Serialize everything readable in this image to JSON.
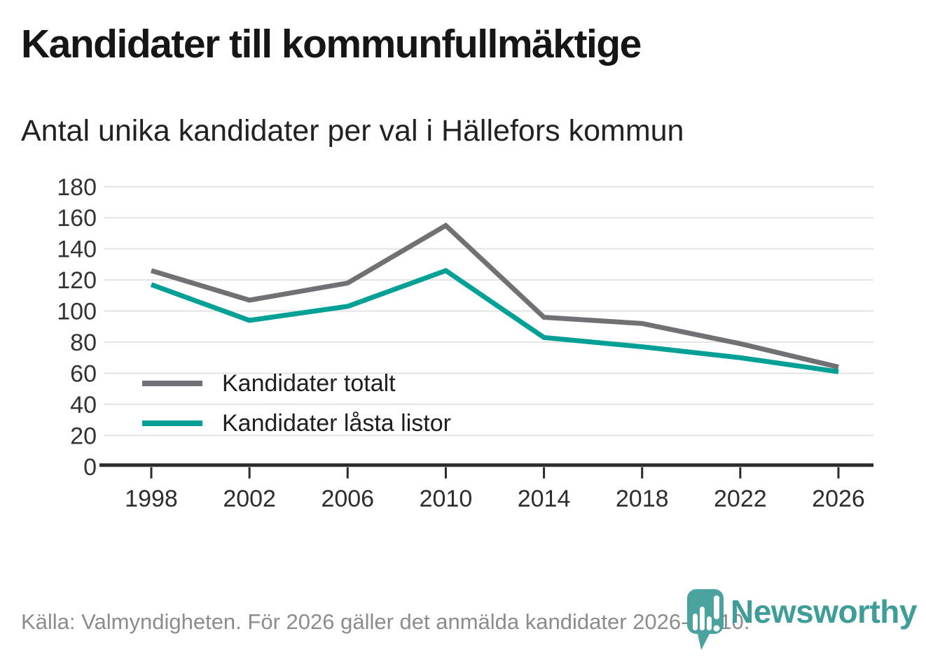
{
  "header": {
    "title": "Kandidater till kommunfullmäktige",
    "subtitle": "Antal unika kandidater per val i Hällefors kommun"
  },
  "chart_data": {
    "type": "line",
    "title": "Kandidater till kommunfullmäktige",
    "subtitle": "Antal unika kandidater per val i Hällefors kommun",
    "categories": [
      1998,
      2002,
      2006,
      2010,
      2014,
      2018,
      2022,
      2026
    ],
    "series": [
      {
        "name": "Kandidater totalt",
        "color": "#717075",
        "values": [
          126,
          107,
          118,
          155,
          96,
          92,
          79,
          64
        ]
      },
      {
        "name": "Kandidater låsta listor",
        "color": "#00a096",
        "values": [
          117,
          94,
          103,
          126,
          83,
          77,
          70,
          61
        ]
      }
    ],
    "xlabel": "",
    "ylabel": "",
    "ylim": [
      0,
      180
    ],
    "ytick_step": 20,
    "grid": "horizontal",
    "legend_position": "inside-bottom-left"
  },
  "footer": {
    "source": "Källa: Valmyndigheten. För 2026 gäller det anmälda kandidater 2026-04-10.",
    "brand": "Newsworthy",
    "brand_color": "#3f9d99"
  }
}
